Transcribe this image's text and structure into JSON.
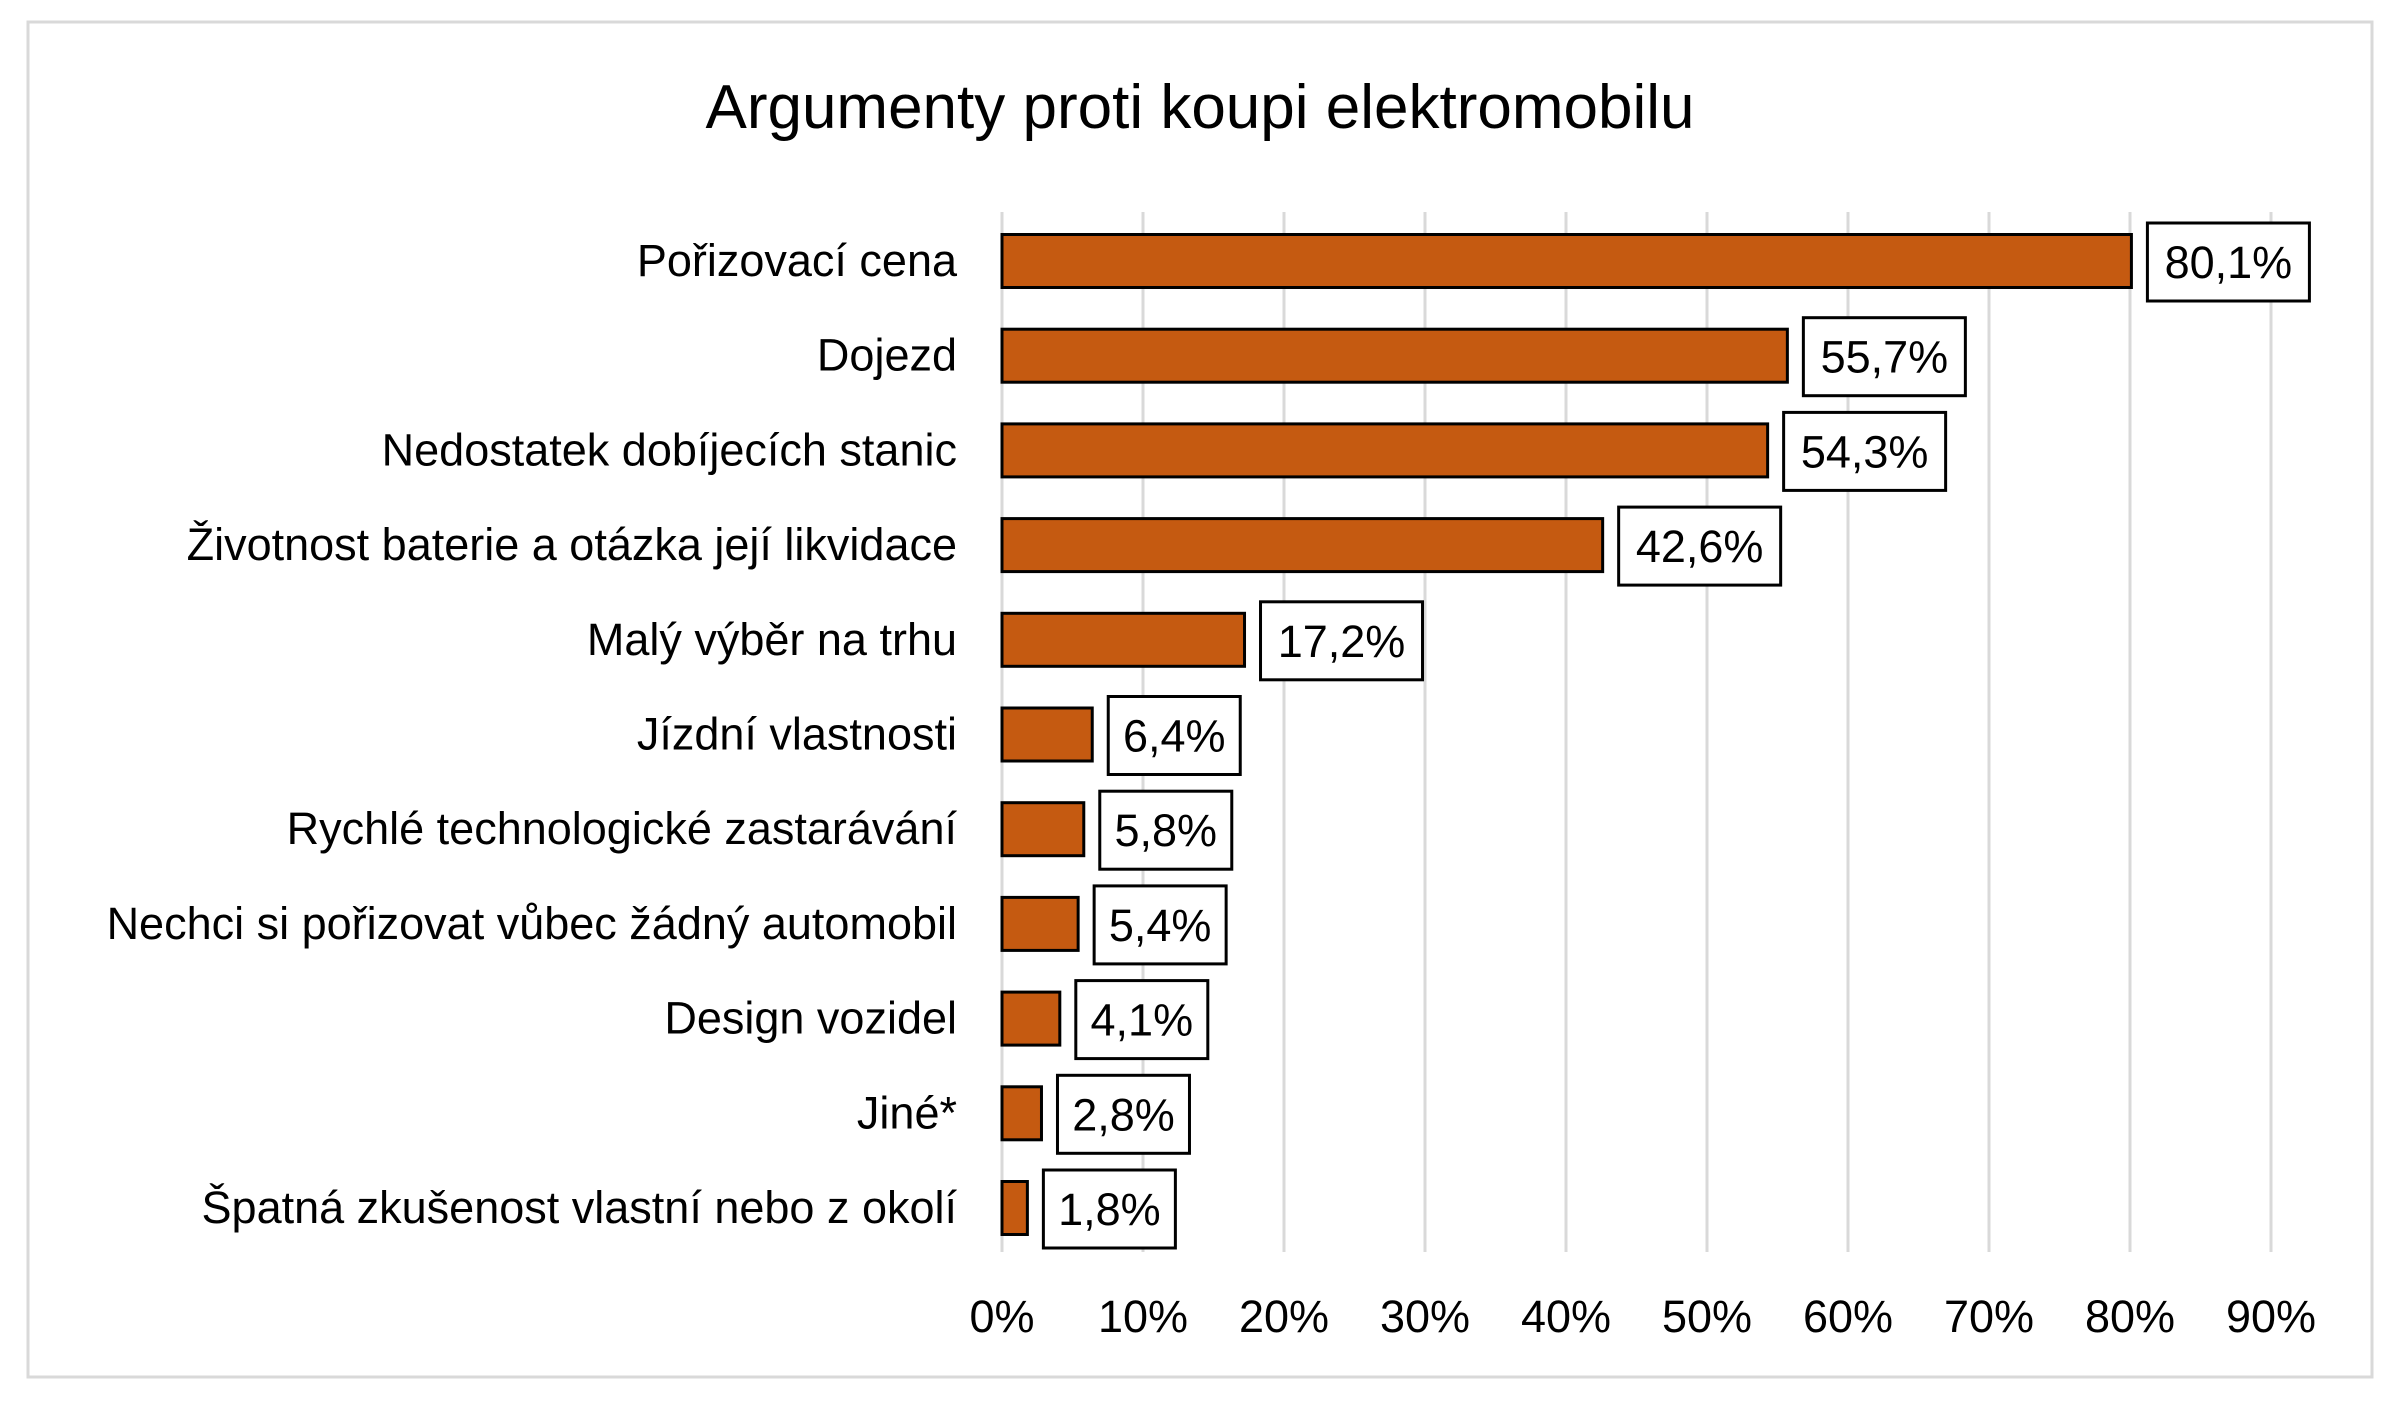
{
  "chart_data": {
    "type": "bar",
    "orientation": "horizontal",
    "title": "Argumenty proti koupi elektromobilu",
    "xlabel": "",
    "ylabel": "",
    "categories": [
      "Pořizovací cena",
      "Dojezd",
      "Nedostatek dobíjecích stanic",
      "Životnost baterie a otázka její likvidace",
      "Malý výběr na trhu",
      "Jízdní vlastnosti",
      "Rychlé technologické zastarávání",
      "Nechci si pořizovat vůbec žádný automobil",
      "Design vozidel",
      "Jiné*",
      "Špatná zkušenost vlastní nebo z okolí"
    ],
    "values": [
      80.1,
      55.7,
      54.3,
      42.6,
      17.2,
      6.4,
      5.8,
      5.4,
      4.1,
      2.8,
      1.8
    ],
    "data_labels": [
      "80,1%",
      "55,7%",
      "54,3%",
      "42,6%",
      "17,2%",
      "6,4%",
      "5,8%",
      "5,4%",
      "4,1%",
      "2,8%",
      "1,8%"
    ],
    "xlim": [
      0,
      90
    ],
    "x_ticks": [
      0,
      10,
      20,
      30,
      40,
      50,
      60,
      70,
      80,
      90
    ],
    "x_tick_labels": [
      "0%",
      "10%",
      "20%",
      "30%",
      "40%",
      "50%",
      "60%",
      "70%",
      "80%",
      "90%"
    ],
    "grid": "vertical",
    "legend": "none",
    "bar_color": "#C55A11"
  }
}
